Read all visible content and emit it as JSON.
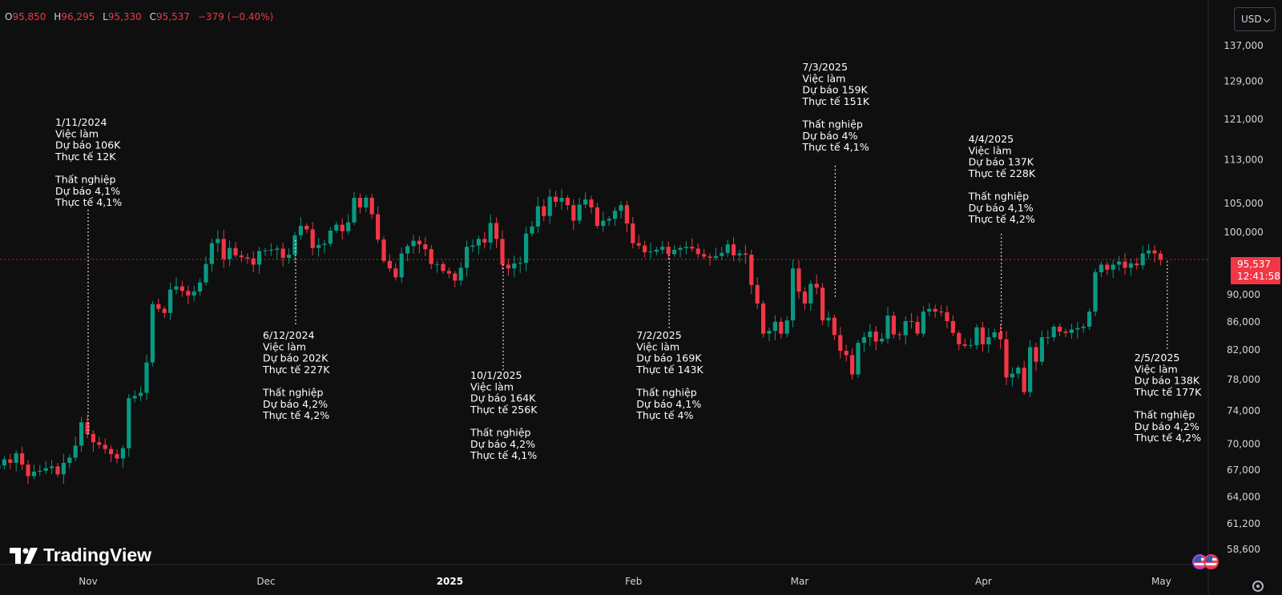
{
  "ohlc": {
    "open_label": "O",
    "open": "95,850",
    "high_label": "H",
    "high": "96,295",
    "low_label": "L",
    "low": "95,330",
    "close_label": "C",
    "close": "95,537",
    "change": "−379 (−0.40%)"
  },
  "currency": "USD",
  "brand": "TradingView",
  "last_price": {
    "value": "95,537",
    "countdown": "12:41:58"
  },
  "colors": {
    "background": "#0f0f0f",
    "up": "#089981",
    "down": "#f23645",
    "grid": "#1f1f1f",
    "text": "#d1d4dc",
    "annotation": "#ffffff"
  },
  "icons": {
    "logo": "tradingview-logo-icon",
    "flags": "us-flag-icon",
    "settings": "gear-icon",
    "currency_dropdown": "chevron-down-icon"
  },
  "chart_data": {
    "type": "candlestick",
    "y_scale": "log",
    "y_range": [
      57000,
      141000
    ],
    "x_range": [
      "2024-10-07",
      "2025-05-10"
    ],
    "grid": false,
    "y_ticks": [
      {
        "value": 137000,
        "label": "137,000"
      },
      {
        "value": 129000,
        "label": "129,000"
      },
      {
        "value": 121000,
        "label": "121,000"
      },
      {
        "value": 113000,
        "label": "113,000"
      },
      {
        "value": 105000,
        "label": "105,000"
      },
      {
        "value": 100000,
        "label": "100,000"
      },
      {
        "value": 90000,
        "label": "90,000"
      },
      {
        "value": 86000,
        "label": "86,000"
      },
      {
        "value": 82000,
        "label": "82,000"
      },
      {
        "value": 78000,
        "label": "78,000"
      },
      {
        "value": 74000,
        "label": "74,000"
      },
      {
        "value": 70000,
        "label": "70,000"
      },
      {
        "value": 67000,
        "label": "67,000"
      },
      {
        "value": 64000,
        "label": "64,000"
      },
      {
        "value": 61200,
        "label": "61,200"
      },
      {
        "value": 58600,
        "label": "58,600"
      }
    ],
    "x_ticks": [
      {
        "date": "2024-11-01",
        "label": "Nov",
        "bold": false
      },
      {
        "date": "2024-12-01",
        "label": "Dec",
        "bold": false
      },
      {
        "date": "2025-01-01",
        "label": "2025",
        "bold": true
      },
      {
        "date": "2025-02-01",
        "label": "Feb",
        "bold": false
      },
      {
        "date": "2025-03-01",
        "label": "Mar",
        "bold": false
      },
      {
        "date": "2025-04-01",
        "label": "Apr",
        "bold": false
      },
      {
        "date": "2025-05-01",
        "label": "May",
        "bold": false
      }
    ],
    "last_value": 95537,
    "closes": [
      67500,
      68200,
      67800,
      68900,
      67600,
      66300,
      66800,
      66900,
      67200,
      67400,
      66500,
      67800,
      68400,
      69800,
      72600,
      71200,
      70200,
      69900,
      69400,
      68800,
      68300,
      69500,
      75600,
      75900,
      76300,
      80300,
      88600,
      87900,
      87300,
      90800,
      91300,
      90600,
      89900,
      90500,
      91900,
      94800,
      98200,
      98900,
      95600,
      97400,
      96200,
      95900,
      95700,
      94700,
      96900,
      97000,
      97100,
      97300,
      95800,
      96300,
      99500,
      101100,
      100500,
      97400,
      97900,
      98100,
      100300,
      101300,
      100200,
      101700,
      106000,
      104300,
      106000,
      103100,
      98800,
      95300,
      94100,
      92700,
      96500,
      97700,
      98600,
      98000,
      97200,
      94800,
      94800,
      93700,
      93300,
      92200,
      94200,
      97600,
      97800,
      98900,
      98300,
      101600,
      98900,
      94700,
      94100,
      94900,
      95000,
      99800,
      101000,
      104500,
      102800,
      106200,
      105300,
      106000,
      104700,
      102000,
      104800,
      105700,
      104300,
      101100,
      102000,
      102300,
      103700,
      104700,
      101500,
      98200,
      97800,
      96700,
      96800,
      97100,
      97600,
      96400,
      97100,
      97400,
      97600,
      97300,
      96400,
      96000,
      95800,
      96100,
      96600,
      98000,
      96200,
      96500,
      96300,
      91500,
      88700,
      84300,
      84700,
      86000,
      84300,
      86200,
      94100,
      90500,
      88700,
      91700,
      91100,
      86200,
      86600,
      84100,
      81900,
      81300,
      78700,
      83000,
      83800,
      84600,
      83200,
      83600,
      86900,
      84200,
      84100,
      86100,
      86000,
      84300,
      87500,
      87900,
      87500,
      87400,
      86100,
      84400,
      82800,
      82600,
      82700,
      85200,
      82800,
      83800,
      84500,
      83500,
      78300,
      78800,
      79600,
      76400,
      82400,
      80400,
      83800,
      83800,
      85300,
      84600,
      84400,
      84900,
      85100,
      85300,
      87500,
      93500,
      94700,
      93900,
      94700,
      95200,
      94200,
      94900,
      94600,
      96500,
      97000,
      96500,
      95500
    ],
    "annotations": [
      {
        "date": "2024-11-01",
        "title": "1/11/2024",
        "jobs_label": "Việc làm",
        "jobs_forecast": "Dự báo 106K",
        "jobs_actual": "Thực tế 12K",
        "unemp_label": "Thất nghiệp",
        "unemp_forecast": "Dự báo 4,1%",
        "unemp_actual": "Thực tế 4,1%"
      },
      {
        "date": "2024-12-06",
        "title": "6/12/2024",
        "jobs_label": "Việc làm",
        "jobs_forecast": "Dự báo 202K",
        "jobs_actual": "Thực tế 227K",
        "unemp_label": "Thất nghiệp",
        "unemp_forecast": "Dự báo 4,2%",
        "unemp_actual": "Thực tế 4,2%"
      },
      {
        "date": "2025-01-10",
        "title": "10/1/2025",
        "jobs_label": "Việc làm",
        "jobs_forecast": "Dự báo 164K",
        "jobs_actual": "Thực tế 256K",
        "unemp_label": "Thất nghiệp",
        "unemp_forecast": "Dự báo 4,2%",
        "unemp_actual": "Thực tế 4,1%"
      },
      {
        "date": "2025-02-07",
        "title": "7/2/2025",
        "jobs_label": "Việc làm",
        "jobs_forecast": "Dự báo 169K",
        "jobs_actual": "Thực tế 143K",
        "unemp_label": "Thất nghiệp",
        "unemp_forecast": "Dự báo 4,1%",
        "unemp_actual": "Thực tế 4%"
      },
      {
        "date": "2025-03-07",
        "title": "7/3/2025",
        "jobs_label": "Việc làm",
        "jobs_forecast": "Dự báo 159K",
        "jobs_actual": "Thực tế 151K",
        "unemp_label": "Thất nghiệp",
        "unemp_forecast": "Dự báo 4%",
        "unemp_actual": "Thực tế 4,1%"
      },
      {
        "date": "2025-04-04",
        "title": "4/4/2025",
        "jobs_label": "Việc làm",
        "jobs_forecast": "Dự báo 137K",
        "jobs_actual": "Thực tế 228K",
        "unemp_label": "Thất nghiệp",
        "unemp_forecast": "Dự báo 4,1%",
        "unemp_actual": "Thực tế 4,2%"
      },
      {
        "date": "2025-05-02",
        "title": "2/5/2025",
        "jobs_label": "Việc làm",
        "jobs_forecast": "Dự báo 138K",
        "jobs_actual": "Thực tế 177K",
        "unemp_label": "Thất nghiệp",
        "unemp_forecast": "Dự báo 4,2%",
        "unemp_actual": "Thực tế 4,2%"
      }
    ]
  }
}
